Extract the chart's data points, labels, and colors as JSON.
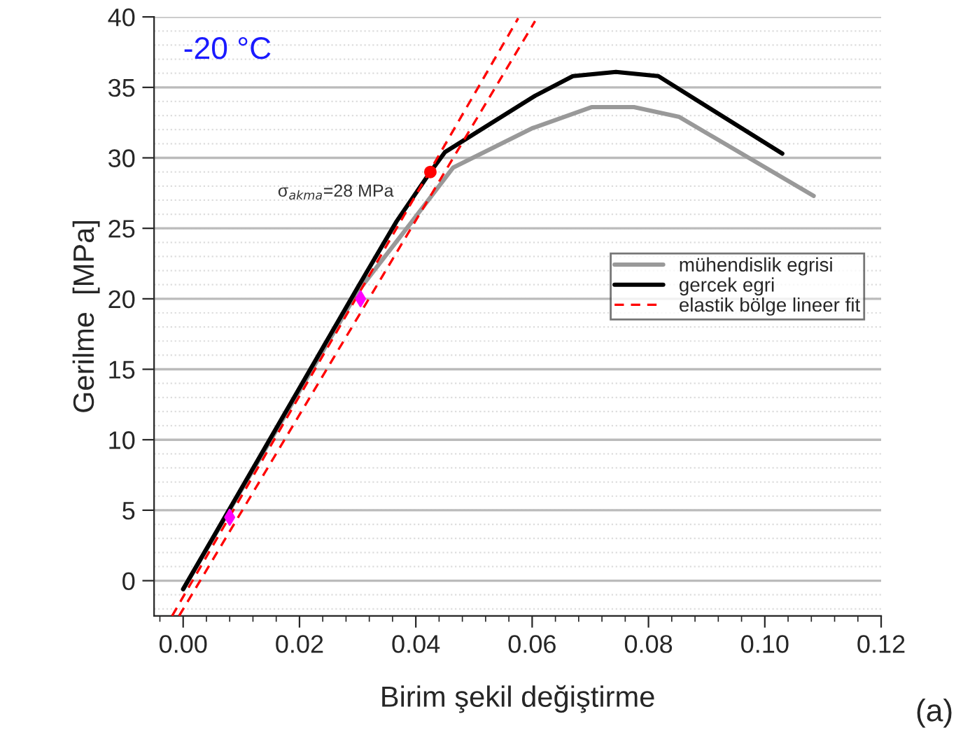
{
  "chart_data": {
    "type": "line",
    "xlabel": "Birim şekil değiştirme",
    "ylabel": "Gerilme  [MPa]",
    "xlim": [
      -0.005,
      0.12
    ],
    "ylim": [
      -2.5,
      40
    ],
    "xticks": [
      {
        "value": 0,
        "label": "0.00"
      },
      {
        "value": 0.02,
        "label": "0.02"
      },
      {
        "value": 0.04,
        "label": "0.04"
      },
      {
        "value": 0.06,
        "label": "0.06"
      },
      {
        "value": 0.08,
        "label": "0.08"
      },
      {
        "value": 0.1,
        "label": "0.10"
      },
      {
        "value": 0.12,
        "label": "0.12"
      }
    ],
    "yticks": [
      0,
      5,
      10,
      15,
      20,
      25,
      30,
      35,
      40
    ],
    "grid": "y",
    "legend": "right",
    "series": [
      {
        "name": "mühendislik egrisi",
        "color": "#999999",
        "x": [
          0.0,
          0.03,
          0.039,
          0.0464,
          0.06,
          0.0702,
          0.0775,
          0.0853,
          0.1084
        ],
        "values": [
          -0.6,
          20.5,
          25.3,
          29.3,
          32.1,
          33.6,
          33.6,
          32.9,
          27.3
        ]
      },
      {
        "name": "gercek egri",
        "color": "#000000",
        "x": [
          0.0,
          0.03,
          0.0367,
          0.0425,
          0.045,
          0.0605,
          0.067,
          0.0744,
          0.0817,
          0.103
        ],
        "values": [
          -0.6,
          20.8,
          25.5,
          29,
          30.4,
          34.4,
          35.8,
          36.1,
          35.8,
          30.3
        ]
      },
      {
        "name": "elastik bölge lineer fit",
        "color": "#ff0000",
        "line_style": "dashed",
        "x": [
          -0.0019,
          0.0576
        ],
        "values": [
          -2.5,
          39.9
        ]
      },
      {
        "color": "#ff0000",
        "line_style": "dashed",
        "x": [
          -0.0007,
          0.0605
        ],
        "values": [
          -2.5,
          39.7
        ]
      },
      {
        "type": "scatter",
        "color": "#ff00ff",
        "marker": "diamond",
        "x": [
          0.008,
          0.0305
        ],
        "values": [
          4.5,
          20
        ]
      },
      {
        "type": "scatter",
        "color": "#ff0000",
        "marker": "circle",
        "x": [
          0.0425
        ],
        "values": [
          29
        ]
      }
    ],
    "annotations": [
      "-20 °C",
      "σ$_{akma}$=28 MPa",
      "(a)"
    ]
  }
}
